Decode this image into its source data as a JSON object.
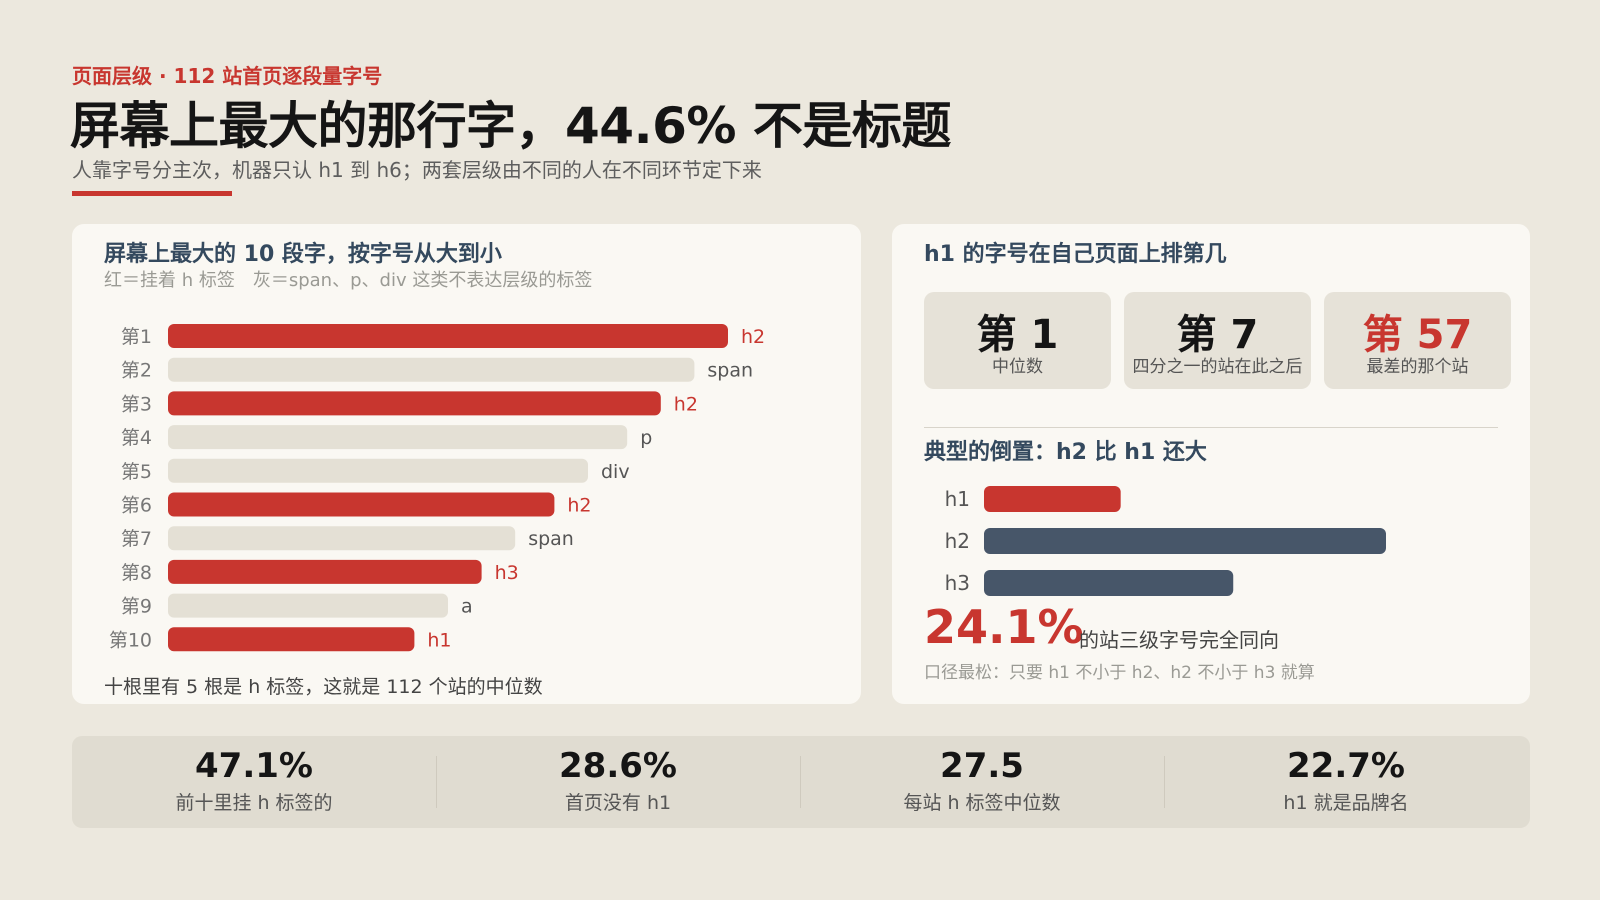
{
  "header": {
    "kicker": "页面层级 · 112 站首页逐段量字号",
    "title": "屏幕上最大的那行字，44.6% 不是标题",
    "subtitle": "人靠字号分主次，机器只认 h1 到 h6；两套层级由不同的人在不同环节定下来"
  },
  "left_card": {
    "title": "屏幕上最大的 10 段字，按字号从大到小",
    "note": "红＝挂着 h 标签　灰＝span、p、div 这类不表达层级的标签",
    "footnote": "十根里有 5 根是 h 标签，这就是 112 个站的中位数"
  },
  "right_card": {
    "title": "h1 的字号在自己页面上排第几",
    "ranks": [
      {
        "value": "第 1",
        "label": "中位数",
        "accent": false
      },
      {
        "value": "第 7",
        "label": "四分之一的站在此之后",
        "accent": false
      },
      {
        "value": "第 57",
        "label": "最差的那个站",
        "accent": true
      }
    ],
    "inversion_title": "典型的倒置：h2 比 h1 还大",
    "big_pct": "24.1%",
    "big_pct_label": "的站三级字号完全同向",
    "footnote": "口径最松：只要 h1 不小于 h2、h2 不小于 h3 就算"
  },
  "stats": [
    {
      "value": "47.1%",
      "label": "前十里挂 h 标签的"
    },
    {
      "value": "28.6%",
      "label": "首页没有 h1"
    },
    {
      "value": "27.5",
      "label": "每站 h 标签中位数"
    },
    {
      "value": "22.7%",
      "label": "h1 就是品牌名"
    }
  ],
  "colors": {
    "accent": "#c8362f",
    "neutral_bar": "#e4e0d5",
    "slate": "#475669",
    "background": "#ece8de",
    "card": "#faf8f3"
  },
  "chart_data": [
    {
      "type": "bar",
      "orientation": "horizontal",
      "categories": [
        "第1",
        "第2",
        "第3",
        "第4",
        "第5",
        "第6",
        "第7",
        "第8",
        "第9",
        "第10"
      ],
      "values": [
        1.0,
        0.94,
        0.88,
        0.82,
        0.75,
        0.69,
        0.62,
        0.56,
        0.5,
        0.44
      ],
      "tags": [
        "h2",
        "span",
        "h2",
        "p",
        "div",
        "h2",
        "span",
        "h3",
        "a",
        "h1"
      ],
      "is_heading": [
        true,
        false,
        true,
        false,
        false,
        true,
        false,
        true,
        false,
        true
      ],
      "title": "屏幕上最大的 10 段字，按字号从大到小"
    },
    {
      "type": "bar",
      "orientation": "horizontal",
      "categories": [
        "h1",
        "h2",
        "h3"
      ],
      "values": [
        0.34,
        1.0,
        0.62
      ],
      "title": "典型的倒置：h2 比 h1 还大"
    }
  ]
}
